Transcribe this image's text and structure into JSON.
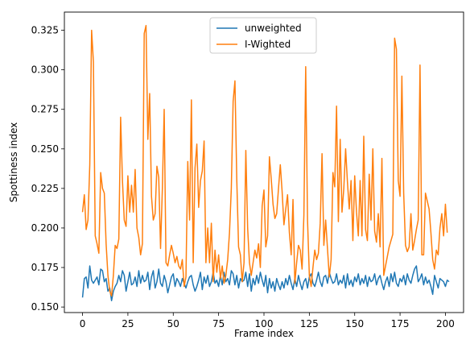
{
  "chart_data": {
    "type": "line",
    "xlabel": "Frame index",
    "ylabel": "Spottiness index",
    "xlim": [
      -10,
      210
    ],
    "ylim": [
      0.1465,
      0.3365
    ],
    "xticks": [
      0,
      25,
      50,
      75,
      100,
      125,
      150,
      175,
      200
    ],
    "yticks": [
      0.15,
      0.175,
      0.2,
      0.225,
      0.25,
      0.275,
      0.3,
      0.325
    ],
    "ytick_labels": [
      "0.150",
      "0.175",
      "0.200",
      "0.225",
      "0.250",
      "0.275",
      "0.300",
      "0.325"
    ],
    "legend": "upper center",
    "grid": false,
    "series": [
      {
        "name": "unweighted",
        "color": "#1f77b4",
        "values": [
          0.156,
          0.168,
          0.169,
          0.162,
          0.176,
          0.167,
          0.165,
          0.167,
          0.169,
          0.164,
          0.174,
          0.173,
          0.166,
          0.168,
          0.16,
          0.162,
          0.154,
          0.16,
          0.163,
          0.165,
          0.17,
          0.166,
          0.173,
          0.17,
          0.16,
          0.166,
          0.172,
          0.164,
          0.165,
          0.169,
          0.163,
          0.173,
          0.165,
          0.17,
          0.166,
          0.167,
          0.172,
          0.161,
          0.169,
          0.173,
          0.162,
          0.166,
          0.174,
          0.165,
          0.163,
          0.17,
          0.166,
          0.159,
          0.164,
          0.169,
          0.171,
          0.163,
          0.168,
          0.166,
          0.163,
          0.168,
          0.165,
          0.162,
          0.166,
          0.169,
          0.17,
          0.164,
          0.16,
          0.163,
          0.167,
          0.172,
          0.161,
          0.169,
          0.165,
          0.17,
          0.163,
          0.166,
          0.172,
          0.165,
          0.167,
          0.163,
          0.17,
          0.164,
          0.172,
          0.166,
          0.168,
          0.164,
          0.173,
          0.171,
          0.164,
          0.17,
          0.162,
          0.168,
          0.166,
          0.167,
          0.172,
          0.163,
          0.171,
          0.16,
          0.168,
          0.164,
          0.17,
          0.165,
          0.172,
          0.167,
          0.163,
          0.17,
          0.159,
          0.168,
          0.162,
          0.166,
          0.16,
          0.168,
          0.164,
          0.161,
          0.166,
          0.162,
          0.168,
          0.164,
          0.17,
          0.165,
          0.161,
          0.168,
          0.163,
          0.17,
          0.165,
          0.161,
          0.166,
          0.168,
          0.162,
          0.169,
          0.171,
          0.165,
          0.163,
          0.167,
          0.172,
          0.166,
          0.163,
          0.169,
          0.17,
          0.165,
          0.172,
          0.168,
          0.165,
          0.166,
          0.171,
          0.164,
          0.167,
          0.165,
          0.17,
          0.162,
          0.171,
          0.164,
          0.167,
          0.163,
          0.169,
          0.166,
          0.171,
          0.164,
          0.168,
          0.165,
          0.17,
          0.163,
          0.169,
          0.166,
          0.167,
          0.171,
          0.164,
          0.168,
          0.17,
          0.165,
          0.161,
          0.166,
          0.169,
          0.163,
          0.171,
          0.166,
          0.172,
          0.165,
          0.163,
          0.168,
          0.166,
          0.17,
          0.164,
          0.171,
          0.167,
          0.165,
          0.17,
          0.174,
          0.176,
          0.166,
          0.168,
          0.171,
          0.164,
          0.169,
          0.165,
          0.167,
          0.163,
          0.158,
          0.17,
          0.166,
          0.162,
          0.168,
          0.167,
          0.166,
          0.163,
          0.167,
          0.166
        ]
      },
      {
        "name": "I-Wighted",
        "color": "#ff7f0e",
        "values": [
          0.21,
          0.221,
          0.199,
          0.205,
          0.24,
          0.325,
          0.305,
          0.195,
          0.19,
          0.184,
          0.235,
          0.225,
          0.222,
          0.19,
          0.17,
          0.16,
          0.157,
          0.17,
          0.189,
          0.187,
          0.193,
          0.27,
          0.23,
          0.205,
          0.201,
          0.233,
          0.21,
          0.227,
          0.21,
          0.237,
          0.2,
          0.194,
          0.183,
          0.19,
          0.323,
          0.328,
          0.256,
          0.285,
          0.22,
          0.205,
          0.209,
          0.239,
          0.232,
          0.187,
          0.225,
          0.275,
          0.178,
          0.176,
          0.183,
          0.189,
          0.184,
          0.178,
          0.182,
          0.176,
          0.174,
          0.18,
          0.163,
          0.169,
          0.242,
          0.205,
          0.281,
          0.178,
          0.238,
          0.253,
          0.213,
          0.23,
          0.236,
          0.255,
          0.178,
          0.2,
          0.178,
          0.203,
          0.166,
          0.186,
          0.172,
          0.183,
          0.168,
          0.176,
          0.165,
          0.17,
          0.18,
          0.197,
          0.225,
          0.28,
          0.293,
          0.231,
          0.188,
          0.183,
          0.166,
          0.178,
          0.249,
          0.2,
          0.178,
          0.17,
          0.178,
          0.186,
          0.181,
          0.19,
          0.175,
          0.214,
          0.224,
          0.188,
          0.195,
          0.245,
          0.231,
          0.215,
          0.206,
          0.209,
          0.225,
          0.24,
          0.223,
          0.202,
          0.212,
          0.221,
          0.197,
          0.183,
          0.218,
          0.165,
          0.178,
          0.189,
          0.186,
          0.174,
          0.208,
          0.302,
          0.205,
          0.17,
          0.163,
          0.175,
          0.186,
          0.18,
          0.184,
          0.203,
          0.247,
          0.189,
          0.205,
          0.187,
          0.169,
          0.18,
          0.235,
          0.226,
          0.277,
          0.204,
          0.256,
          0.21,
          0.225,
          0.25,
          0.229,
          0.212,
          0.23,
          0.192,
          0.233,
          0.21,
          0.195,
          0.23,
          0.195,
          0.258,
          0.199,
          0.192,
          0.234,
          0.205,
          0.25,
          0.198,
          0.191,
          0.209,
          0.188,
          0.244,
          0.17,
          0.176,
          0.182,
          0.188,
          0.192,
          0.196,
          0.32,
          0.313,
          0.23,
          0.22,
          0.296,
          0.222,
          0.189,
          0.185,
          0.188,
          0.209,
          0.186,
          0.192,
          0.199,
          0.205,
          0.303,
          0.183,
          0.183,
          0.222,
          0.217,
          0.212,
          0.197,
          0.18,
          0.174,
          0.186,
          0.183,
          0.2,
          0.209,
          0.195,
          0.215,
          0.197
        ]
      }
    ]
  }
}
